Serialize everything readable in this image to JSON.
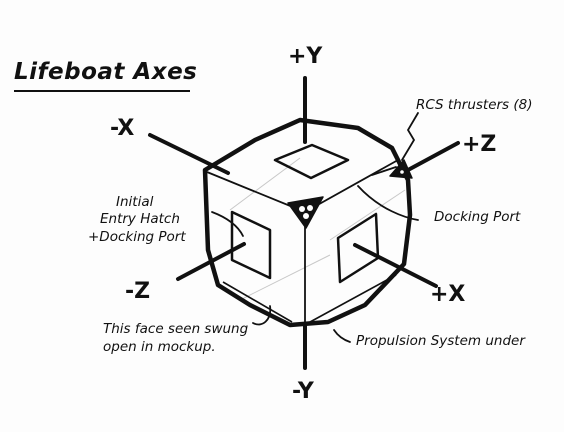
{
  "title": "Lifeboat Axes",
  "axes": {
    "plus_y": "+Y",
    "minus_y": "-Y",
    "plus_x": "+X",
    "minus_x": "-X",
    "plus_z": "+Z",
    "minus_z": "-Z"
  },
  "callouts": {
    "rcs": "RCS thrusters (8)",
    "hatch_line1": "Initial",
    "hatch_line2": "Entry Hatch",
    "hatch_line3": "+Docking Port",
    "docking_port": "Docking Port",
    "face_line1": "This face seen swung",
    "face_line2": "open in mockup.",
    "propulsion": "Propulsion System under"
  },
  "colors": {
    "ink": "#111111",
    "paper": "#fdfdfd",
    "guide": "#c8c8c8"
  }
}
